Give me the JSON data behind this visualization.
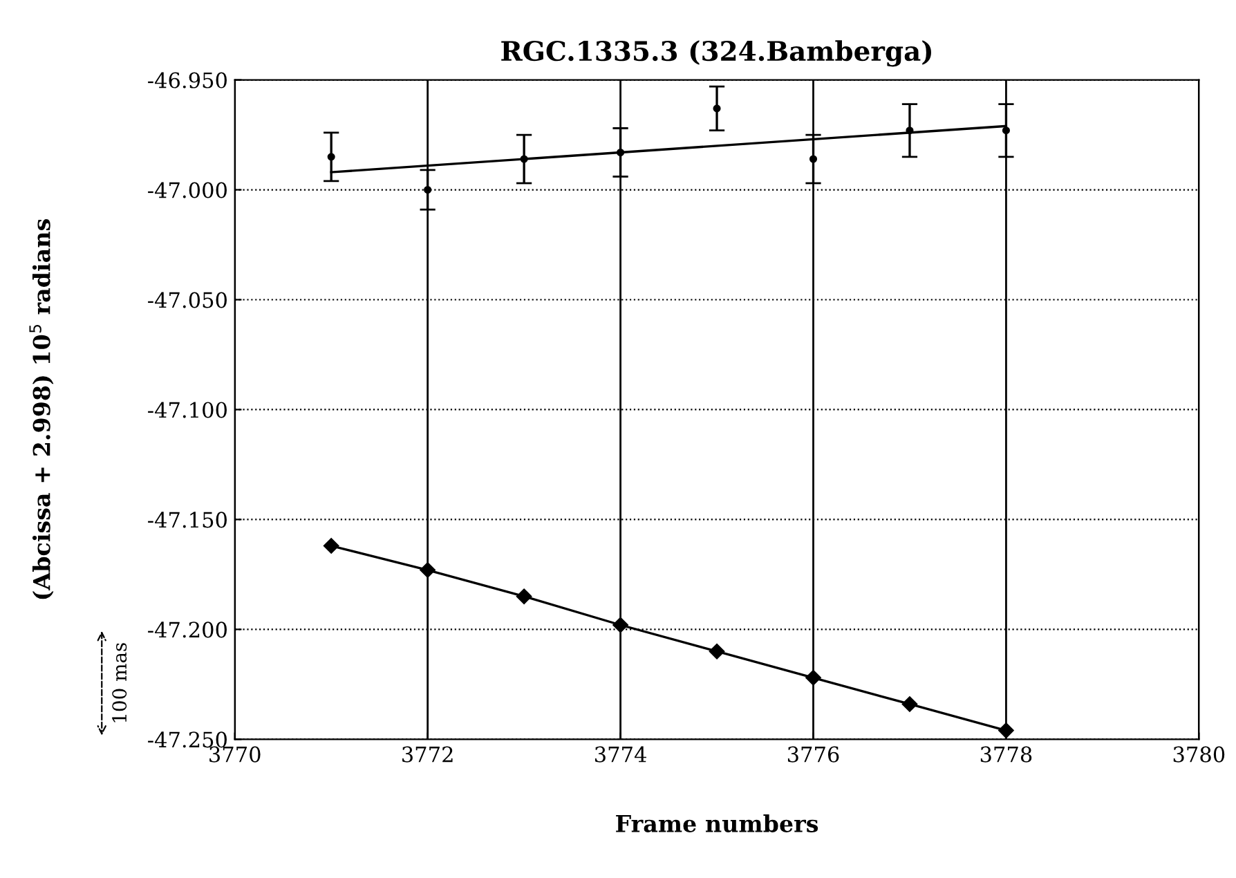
{
  "chart_data": {
    "type": "line",
    "title": "RGC.1335.3 (324.Bamberga)",
    "xlabel": "Frame numbers",
    "ylabel": "(Abcissa + 2.998) 10$^{5}$ radians",
    "annotations": [
      "100 mas"
    ],
    "x": [
      3771,
      3772,
      3773,
      3774,
      3775,
      3776,
      3777,
      3778
    ],
    "series": [
      {
        "type": "scatter",
        "color": "#000000",
        "marker": "circle",
        "values": [
          -46.985,
          -47.0,
          -46.986,
          -46.983,
          -46.963,
          -46.986,
          -46.973,
          -46.973
        ],
        "errors": [
          0.011,
          0.009,
          0.011,
          0.011,
          0.01,
          0.011,
          0.012,
          0.012
        ]
      },
      {
        "color": "#000000",
        "marker": "none",
        "x": [
          3771,
          3778
        ],
        "values": [
          -46.992,
          -46.971
        ]
      },
      {
        "color": "#000000",
        "marker": "diamond",
        "values": [
          -47.162,
          -47.173,
          -47.185,
          -47.198,
          -47.21,
          -47.222,
          -47.234,
          -47.246
        ]
      }
    ],
    "xlim": [
      3770,
      3780
    ],
    "xticks": [
      3770,
      3772,
      3774,
      3776,
      3778,
      3780
    ],
    "ylim": [
      -47.25,
      -46.95
    ],
    "yticks": [
      {
        "value": -47.25,
        "label": "-47.250"
      },
      {
        "value": -47.2,
        "label": "-47.200"
      },
      {
        "value": -47.15,
        "label": "-47.150"
      },
      {
        "value": -47.1,
        "label": "-47.100"
      },
      {
        "value": -47.05,
        "label": "-47.050"
      },
      {
        "value": -47.0,
        "label": "-47.000"
      },
      {
        "value": -46.95,
        "label": "-46.950"
      }
    ],
    "grid": true,
    "line_style": "solid"
  }
}
